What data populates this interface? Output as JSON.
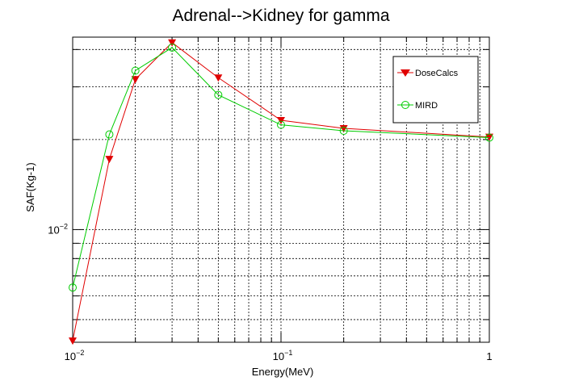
{
  "chart_data": {
    "type": "line",
    "title": "Adrenal-->Kidney for gamma",
    "xlabel": "Energy(MeV)",
    "ylabel": "SAF(Kg-1)",
    "xscale": "log",
    "yscale": "log",
    "xlim": [
      0.01,
      1
    ],
    "ylim": [
      0.0042,
      0.044
    ],
    "grid": true,
    "legend_position": "top-right",
    "x_ticks": [
      {
        "base": "10",
        "exp": "−2"
      },
      {
        "base": "10",
        "exp": "−1"
      },
      {
        "base": "1",
        "exp": ""
      }
    ],
    "y_ticks": [
      {
        "base": "10",
        "exp": "−2"
      }
    ],
    "series": [
      {
        "name": "DoseCalcs",
        "color": "#e00000",
        "marker": "triangle-down",
        "x": [
          0.01,
          0.015,
          0.02,
          0.03,
          0.05,
          0.1,
          0.2,
          1.0
        ],
        "y": [
          0.00425,
          0.0172,
          0.0318,
          0.0422,
          0.0322,
          0.0232,
          0.0218,
          0.0204
        ]
      },
      {
        "name": "MIRD",
        "color": "#00cc00",
        "marker": "circle-open",
        "x": [
          0.01,
          0.015,
          0.02,
          0.03,
          0.05,
          0.1,
          0.2,
          1.0
        ],
        "y": [
          0.0064,
          0.0208,
          0.034,
          0.0406,
          0.0282,
          0.0224,
          0.0214,
          0.0203
        ]
      }
    ]
  }
}
